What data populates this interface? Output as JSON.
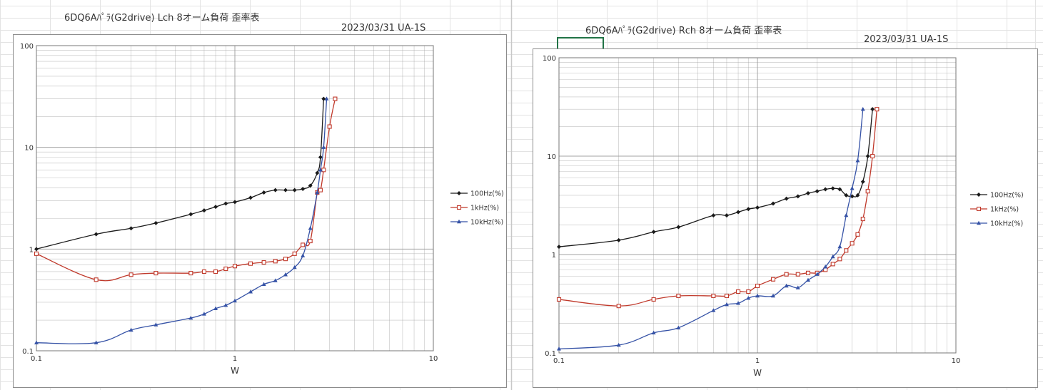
{
  "colors": {
    "grid": "#9a9a9a",
    "s100": "#1a1a1a",
    "s1k": "#c0392b",
    "s10k": "#3552a6"
  },
  "left": {
    "title": "6DQ6Aﾊﾟﾗ(G2drive)  Lch   8オーム負荷 歪率表",
    "date_label": "2023/03/31    UA-1S"
  },
  "right": {
    "title": "6DQ6Aﾊﾟﾗ(G2drive)  Rch   8オーム負荷 歪率表",
    "date_label": "2023/03/31    UA-1S"
  },
  "chart_data": [
    {
      "type": "line",
      "title": "",
      "xlabel": "W",
      "ylabel": "%",
      "xscale": "log",
      "yscale": "log",
      "xlim": [
        0.1,
        10
      ],
      "ylim": [
        0.1,
        100
      ],
      "xticks": [
        "0.1",
        "1",
        "10"
      ],
      "yticks": [
        "0.1",
        "1",
        "10",
        "100"
      ],
      "grid": true,
      "legend": "right",
      "series": [
        {
          "name": "100Hz(%)",
          "marker": "diamond",
          "color": "#1a1a1a",
          "x": [
            0.1,
            0.2,
            0.3,
            0.4,
            0.6,
            0.7,
            0.8,
            0.9,
            1.0,
            1.2,
            1.4,
            1.6,
            1.8,
            2.0,
            2.2,
            2.4,
            2.6,
            2.7,
            2.8
          ],
          "y": [
            1.0,
            1.4,
            1.6,
            1.8,
            2.2,
            2.4,
            2.6,
            2.8,
            2.9,
            3.2,
            3.6,
            3.8,
            3.8,
            3.8,
            3.9,
            4.2,
            5.6,
            8.0,
            30
          ]
        },
        {
          "name": "1kHz(%)",
          "marker": "square",
          "color": "#c0392b",
          "x": [
            0.1,
            0.2,
            0.3,
            0.4,
            0.6,
            0.7,
            0.8,
            0.9,
            1.0,
            1.2,
            1.4,
            1.6,
            1.8,
            2.0,
            2.2,
            2.4,
            2.6,
            2.7,
            2.8,
            3.0,
            3.2
          ],
          "y": [
            0.9,
            0.5,
            0.56,
            0.58,
            0.58,
            0.6,
            0.6,
            0.64,
            0.68,
            0.72,
            0.74,
            0.76,
            0.8,
            0.9,
            1.1,
            1.2,
            3.6,
            3.8,
            6.0,
            16,
            30
          ]
        },
        {
          "name": "10kHz(%)",
          "marker": "triangle",
          "color": "#3552a6",
          "x": [
            0.1,
            0.2,
            0.3,
            0.4,
            0.6,
            0.7,
            0.8,
            0.9,
            1.0,
            1.2,
            1.4,
            1.6,
            1.8,
            2.0,
            2.2,
            2.4,
            2.6,
            2.7,
            2.8,
            2.9
          ],
          "y": [
            0.12,
            0.12,
            0.16,
            0.18,
            0.21,
            0.23,
            0.26,
            0.28,
            0.31,
            0.38,
            0.45,
            0.49,
            0.56,
            0.66,
            0.86,
            1.6,
            3.6,
            6.0,
            10,
            30
          ]
        }
      ]
    },
    {
      "type": "line",
      "title": "",
      "xlabel": "W",
      "ylabel": "%",
      "xscale": "log",
      "yscale": "log",
      "xlim": [
        0.1,
        10
      ],
      "ylim": [
        0.1,
        100
      ],
      "xticks": [
        "0.1",
        "1",
        "10"
      ],
      "yticks": [
        "0.1",
        "1",
        "10",
        "100"
      ],
      "grid": true,
      "legend": "right",
      "series": [
        {
          "name": "100Hz(%)",
          "marker": "diamond",
          "color": "#1a1a1a",
          "x": [
            0.1,
            0.2,
            0.3,
            0.4,
            0.6,
            0.7,
            0.8,
            0.9,
            1.0,
            1.2,
            1.4,
            1.6,
            1.8,
            2.0,
            2.2,
            2.4,
            2.6,
            2.8,
            3.0,
            3.2,
            3.4,
            3.6,
            3.8
          ],
          "y": [
            1.2,
            1.4,
            1.7,
            1.9,
            2.5,
            2.5,
            2.7,
            2.9,
            3.0,
            3.3,
            3.7,
            3.9,
            4.2,
            4.4,
            4.6,
            4.7,
            4.6,
            4.0,
            3.9,
            4.0,
            5.5,
            10,
            30
          ]
        },
        {
          "name": "1kHz(%)",
          "marker": "square",
          "color": "#c0392b",
          "x": [
            0.1,
            0.2,
            0.3,
            0.4,
            0.6,
            0.7,
            0.8,
            0.9,
            1.0,
            1.2,
            1.4,
            1.6,
            1.8,
            2.0,
            2.2,
            2.4,
            2.6,
            2.8,
            3.0,
            3.2,
            3.4,
            3.6,
            3.8,
            4.0
          ],
          "y": [
            0.35,
            0.3,
            0.35,
            0.38,
            0.38,
            0.38,
            0.42,
            0.42,
            0.48,
            0.56,
            0.63,
            0.63,
            0.65,
            0.65,
            0.7,
            0.8,
            0.9,
            1.1,
            1.3,
            1.6,
            2.3,
            4.4,
            10,
            30
          ]
        },
        {
          "name": "10kHz(%)",
          "marker": "triangle",
          "color": "#3552a6",
          "x": [
            0.1,
            0.2,
            0.3,
            0.4,
            0.6,
            0.7,
            0.8,
            0.9,
            1.0,
            1.2,
            1.4,
            1.6,
            1.8,
            2.0,
            2.2,
            2.4,
            2.6,
            2.8,
            3.0,
            3.2,
            3.4
          ],
          "y": [
            0.11,
            0.12,
            0.16,
            0.18,
            0.27,
            0.31,
            0.32,
            0.36,
            0.38,
            0.38,
            0.48,
            0.46,
            0.55,
            0.63,
            0.75,
            0.95,
            1.2,
            2.5,
            4.7,
            9.0,
            30
          ]
        }
      ]
    }
  ]
}
